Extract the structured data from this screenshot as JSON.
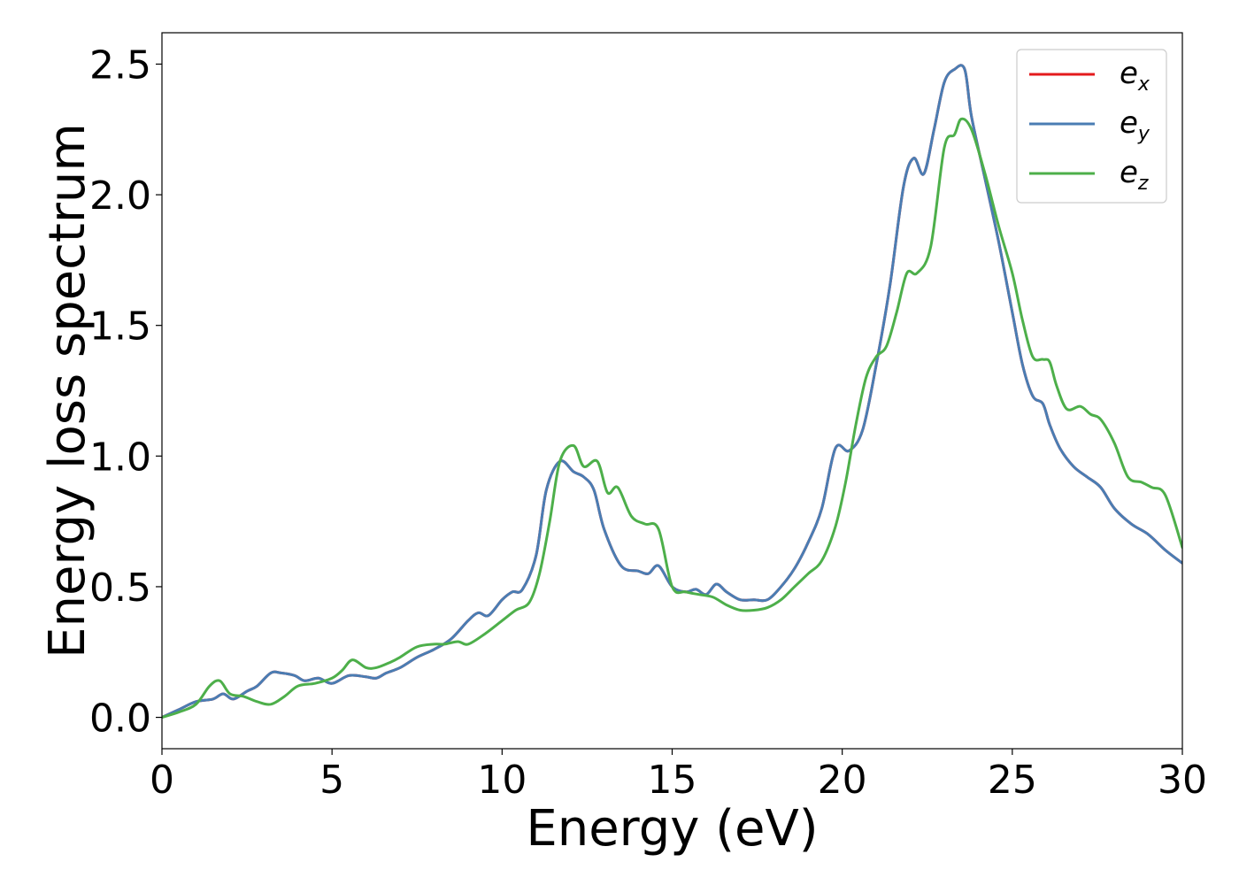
{
  "chart_data": {
    "type": "line",
    "xlabel": "Energy (eV)",
    "ylabel": "Energy loss spectrum",
    "xlim": [
      0,
      30
    ],
    "ylim": [
      -0.12,
      2.62
    ],
    "xticks": [
      0,
      5,
      10,
      15,
      20,
      25,
      30
    ],
    "xtick_labels": [
      "0",
      "5",
      "10",
      "15",
      "20",
      "25",
      "30"
    ],
    "yticks": [
      0.0,
      0.5,
      1.0,
      1.5,
      2.0,
      2.5
    ],
    "ytick_labels": [
      "0.0",
      "0.5",
      "1.0",
      "1.5",
      "2.0",
      "2.5"
    ],
    "grid": false,
    "legend_position": "top-right",
    "series": [
      {
        "name": "e",
        "subscript": "x",
        "color": "#e41a1c",
        "x": [
          0,
          0.5,
          1,
          1.5,
          1.8,
          2.1,
          2.5,
          2.8,
          3.2,
          3.5,
          3.9,
          4.2,
          4.6,
          5,
          5.5,
          6,
          6.3,
          6.6,
          7,
          7.5,
          8,
          8.5,
          9,
          9.3,
          9.6,
          10,
          10.3,
          10.6,
          11,
          11.3,
          11.7,
          12.1,
          12.4,
          12.7,
          13,
          13.5,
          14,
          14.3,
          14.6,
          15,
          15.4,
          15.7,
          16,
          16.3,
          16.6,
          17,
          17.4,
          17.8,
          18.2,
          18.6,
          19,
          19.4,
          19.8,
          20.2,
          20.6,
          21,
          21.4,
          21.8,
          22.1,
          22.4,
          22.7,
          23,
          23.3,
          23.6,
          23.8,
          24.2,
          24.6,
          25,
          25.3,
          25.6,
          25.9,
          26.1,
          26.4,
          26.8,
          27.2,
          27.6,
          28,
          28.5,
          29,
          29.5,
          30
        ],
        "values": [
          0,
          0.03,
          0.06,
          0.07,
          0.09,
          0.07,
          0.1,
          0.12,
          0.17,
          0.17,
          0.16,
          0.14,
          0.15,
          0.13,
          0.16,
          0.155,
          0.15,
          0.17,
          0.19,
          0.23,
          0.26,
          0.3,
          0.37,
          0.4,
          0.39,
          0.45,
          0.48,
          0.49,
          0.62,
          0.87,
          0.98,
          0.94,
          0.92,
          0.87,
          0.72,
          0.58,
          0.56,
          0.55,
          0.58,
          0.5,
          0.48,
          0.49,
          0.47,
          0.51,
          0.48,
          0.45,
          0.45,
          0.45,
          0.5,
          0.57,
          0.67,
          0.8,
          1.03,
          1.02,
          1.1,
          1.35,
          1.65,
          2.03,
          2.14,
          2.08,
          2.25,
          2.43,
          2.48,
          2.48,
          2.3,
          2.06,
          1.82,
          1.55,
          1.35,
          1.23,
          1.2,
          1.12,
          1.03,
          0.96,
          0.92,
          0.88,
          0.8,
          0.74,
          0.7,
          0.64,
          0.59
        ]
      },
      {
        "name": "e",
        "subscript": "y",
        "color": "#4a7db3",
        "x": [
          0,
          0.5,
          1,
          1.5,
          1.8,
          2.1,
          2.5,
          2.8,
          3.2,
          3.5,
          3.9,
          4.2,
          4.6,
          5,
          5.5,
          6,
          6.3,
          6.6,
          7,
          7.5,
          8,
          8.5,
          9,
          9.3,
          9.6,
          10,
          10.3,
          10.6,
          11,
          11.3,
          11.7,
          12.1,
          12.4,
          12.7,
          13,
          13.5,
          14,
          14.3,
          14.6,
          15,
          15.4,
          15.7,
          16,
          16.3,
          16.6,
          17,
          17.4,
          17.8,
          18.2,
          18.6,
          19,
          19.4,
          19.8,
          20.2,
          20.6,
          21,
          21.4,
          21.8,
          22.1,
          22.4,
          22.7,
          23,
          23.3,
          23.6,
          23.8,
          24.2,
          24.6,
          25,
          25.3,
          25.6,
          25.9,
          26.1,
          26.4,
          26.8,
          27.2,
          27.6,
          28,
          28.5,
          29,
          29.5,
          30
        ],
        "values": [
          0,
          0.03,
          0.06,
          0.07,
          0.09,
          0.07,
          0.1,
          0.12,
          0.17,
          0.17,
          0.16,
          0.14,
          0.15,
          0.13,
          0.16,
          0.155,
          0.15,
          0.17,
          0.19,
          0.23,
          0.26,
          0.3,
          0.37,
          0.4,
          0.39,
          0.45,
          0.48,
          0.49,
          0.62,
          0.87,
          0.98,
          0.94,
          0.92,
          0.87,
          0.72,
          0.58,
          0.56,
          0.55,
          0.58,
          0.5,
          0.48,
          0.49,
          0.47,
          0.51,
          0.48,
          0.45,
          0.45,
          0.45,
          0.5,
          0.57,
          0.67,
          0.8,
          1.03,
          1.02,
          1.1,
          1.35,
          1.65,
          2.03,
          2.14,
          2.08,
          2.25,
          2.43,
          2.48,
          2.48,
          2.3,
          2.06,
          1.82,
          1.55,
          1.35,
          1.23,
          1.2,
          1.12,
          1.03,
          0.96,
          0.92,
          0.88,
          0.8,
          0.74,
          0.7,
          0.64,
          0.59
        ]
      },
      {
        "name": "e",
        "subscript": "z",
        "color": "#4daf4a",
        "x": [
          0,
          0.5,
          1,
          1.4,
          1.7,
          2,
          2.4,
          2.8,
          3.2,
          3.6,
          4,
          4.5,
          5,
          5.3,
          5.6,
          6,
          6.3,
          6.7,
          7,
          7.5,
          8,
          8.3,
          8.7,
          9,
          9.5,
          10,
          10.4,
          10.8,
          11.1,
          11.4,
          11.7,
          12.1,
          12.4,
          12.8,
          13.1,
          13.4,
          13.8,
          14.2,
          14.6,
          15,
          15.4,
          15.8,
          16.2,
          16.6,
          17,
          17.4,
          17.8,
          18.2,
          18.6,
          19,
          19.4,
          19.8,
          20.1,
          20.4,
          20.7,
          21,
          21.3,
          21.6,
          21.9,
          22.2,
          22.6,
          23,
          23.3,
          23.5,
          23.8,
          24.2,
          24.6,
          25,
          25.3,
          25.6,
          25.9,
          26.1,
          26.3,
          26.6,
          27,
          27.3,
          27.6,
          28,
          28.4,
          28.8,
          29.1,
          29.5,
          30
        ],
        "values": [
          0,
          0.02,
          0.05,
          0.12,
          0.14,
          0.09,
          0.08,
          0.06,
          0.05,
          0.08,
          0.12,
          0.13,
          0.15,
          0.18,
          0.22,
          0.19,
          0.19,
          0.21,
          0.23,
          0.27,
          0.28,
          0.28,
          0.29,
          0.28,
          0.32,
          0.37,
          0.41,
          0.44,
          0.55,
          0.75,
          0.98,
          1.04,
          0.96,
          0.98,
          0.86,
          0.88,
          0.77,
          0.74,
          0.72,
          0.5,
          0.48,
          0.47,
          0.46,
          0.43,
          0.41,
          0.41,
          0.42,
          0.45,
          0.5,
          0.55,
          0.6,
          0.73,
          0.9,
          1.12,
          1.3,
          1.38,
          1.42,
          1.55,
          1.7,
          1.7,
          1.8,
          2.18,
          2.23,
          2.29,
          2.25,
          2.08,
          1.88,
          1.7,
          1.52,
          1.38,
          1.37,
          1.36,
          1.27,
          1.18,
          1.19,
          1.16,
          1.14,
          1.05,
          0.92,
          0.9,
          0.88,
          0.85,
          0.65
        ]
      }
    ]
  }
}
